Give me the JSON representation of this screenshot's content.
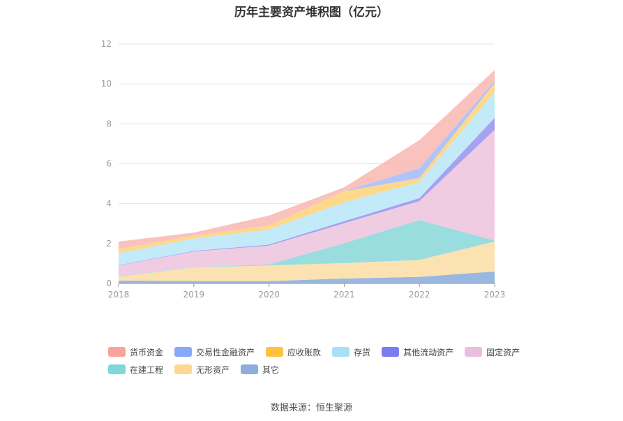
{
  "chart_data": {
    "type": "area",
    "stacked": true,
    "title": "历年主要资产堆积图（亿元）",
    "x": [
      "2018",
      "2019",
      "2020",
      "2021",
      "2022",
      "2023"
    ],
    "ylim": [
      0,
      12
    ],
    "yticks": [
      "0",
      "2",
      "4",
      "6",
      "8",
      "10",
      "12"
    ],
    "grid": true,
    "legend_position": "bottom",
    "series": [
      {
        "name": "其它",
        "color": "#8FB0DB",
        "values": [
          0.15,
          0.12,
          0.12,
          0.25,
          0.33,
          0.6
        ]
      },
      {
        "name": "无形资产",
        "color": "#FDDFA8",
        "values": [
          0.18,
          0.68,
          0.78,
          0.77,
          0.85,
          1.5
        ]
      },
      {
        "name": "在建工程",
        "color": "#8ED9DC",
        "values": [
          0.02,
          0.02,
          0.05,
          1.0,
          2.0,
          0.05
        ]
      },
      {
        "name": "固定资产",
        "color": "#EEC7E0",
        "values": [
          0.55,
          0.78,
          0.95,
          1.0,
          0.95,
          5.55
        ]
      },
      {
        "name": "其他流动资产",
        "color": "#9C97EF",
        "values": [
          0.02,
          0.03,
          0.05,
          0.1,
          0.15,
          0.6
        ]
      },
      {
        "name": "存货",
        "color": "#BDE8F7",
        "values": [
          0.6,
          0.62,
          0.75,
          0.95,
          0.8,
          1.3
        ]
      },
      {
        "name": "应收账款",
        "color": "#FED57F",
        "values": [
          0.2,
          0.15,
          0.2,
          0.55,
          0.2,
          0.45
        ]
      },
      {
        "name": "交易性金融资产",
        "color": "#A9BEF8",
        "values": [
          0.0,
          0.0,
          0.0,
          0.0,
          0.5,
          0.1
        ]
      },
      {
        "name": "货币资金",
        "color": "#F8BBB6",
        "values": [
          0.38,
          0.15,
          0.5,
          0.2,
          1.4,
          0.55
        ]
      }
    ],
    "legend": [
      {
        "name": "货币资金",
        "color": "#F8A49C"
      },
      {
        "name": "交易性金融资产",
        "color": "#88A8F9"
      },
      {
        "name": "应收账款",
        "color": "#FEC240"
      },
      {
        "name": "存货",
        "color": "#A9DFF7"
      },
      {
        "name": "其他流动资产",
        "color": "#7A7CEF"
      },
      {
        "name": "固定资产",
        "color": "#EBBDDF"
      },
      {
        "name": "在建工程",
        "color": "#7FD7DA"
      },
      {
        "name": "无形资产",
        "color": "#FDD894"
      },
      {
        "name": "其它",
        "color": "#8EADDB"
      }
    ]
  },
  "source": "数据来源：恒生聚源"
}
